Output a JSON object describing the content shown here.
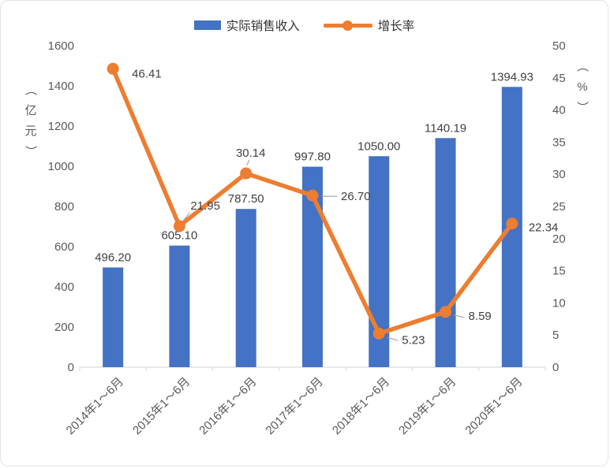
{
  "chart_data": {
    "type": "bar",
    "subtype": "combo-bar-line-dual-axis",
    "title": "",
    "categories": [
      "2014年1～6月",
      "2015年1～6月",
      "2016年1～6月",
      "2017年1～6月",
      "2018年1～6月",
      "2019年1～6月",
      "2020年1～6月"
    ],
    "series": [
      {
        "name": "实际销售收入",
        "type": "bar",
        "axis": "left",
        "color": "#4472C4",
        "values": [
          496.2,
          605.1,
          787.5,
          997.8,
          1050.0,
          1140.19,
          1394.93
        ],
        "labels": [
          "496.20",
          "605.10",
          "787.50",
          "997.80",
          "1050.00",
          "1140.19",
          "1394.93"
        ]
      },
      {
        "name": "增长率",
        "type": "line",
        "axis": "right",
        "color": "#ED7D31",
        "values": [
          46.41,
          21.95,
          30.14,
          26.7,
          5.23,
          8.59,
          22.34
        ],
        "labels": [
          "46.41",
          "21.95",
          "30.14",
          "26.70",
          "5.23",
          "8.59",
          "22.34"
        ]
      }
    ],
    "left_axis": {
      "title": "（亿元）",
      "min": 0,
      "max": 1600,
      "step": 200,
      "ticks": [
        0,
        200,
        400,
        600,
        800,
        1000,
        1200,
        1400,
        1600
      ]
    },
    "right_axis": {
      "title": "（%）",
      "min": 0,
      "max": 50,
      "step": 5,
      "ticks": [
        0,
        5,
        10,
        15,
        20,
        25,
        30,
        35,
        40,
        45,
        50
      ]
    },
    "grid": false,
    "legend_position": "top",
    "axis_line_color": "#d9d9d9"
  }
}
